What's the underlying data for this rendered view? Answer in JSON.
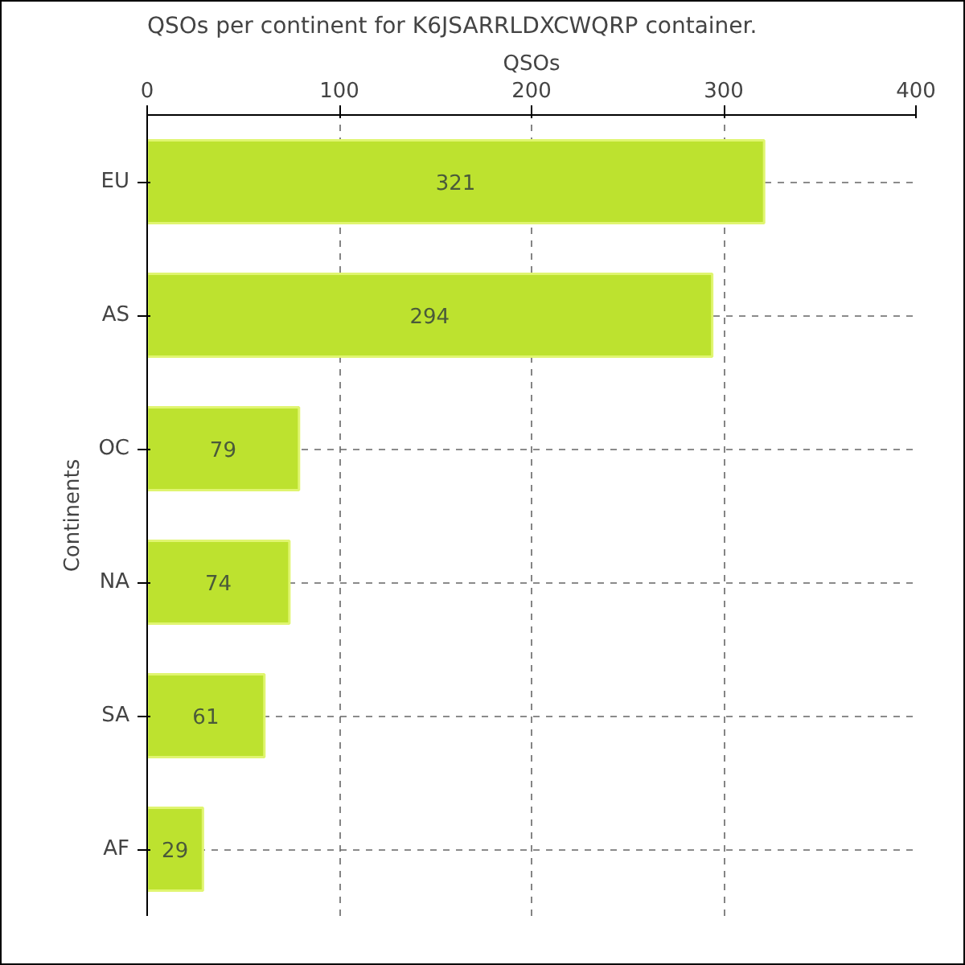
{
  "chart_data": {
    "type": "bar",
    "orientation": "horizontal",
    "title": "QSOs per continent for K6JSARRLDXCWQRP container.",
    "xlabel": "QSOs",
    "ylabel": "Continents",
    "categories": [
      "EU",
      "AS",
      "OC",
      "NA",
      "SA",
      "AF"
    ],
    "values": [
      321,
      294,
      79,
      74,
      61,
      29
    ],
    "color": "#bde22f",
    "xlim": [
      0,
      400
    ],
    "xticks": [
      0,
      100,
      200,
      300,
      400
    ],
    "grid": true,
    "data_labels": true
  }
}
